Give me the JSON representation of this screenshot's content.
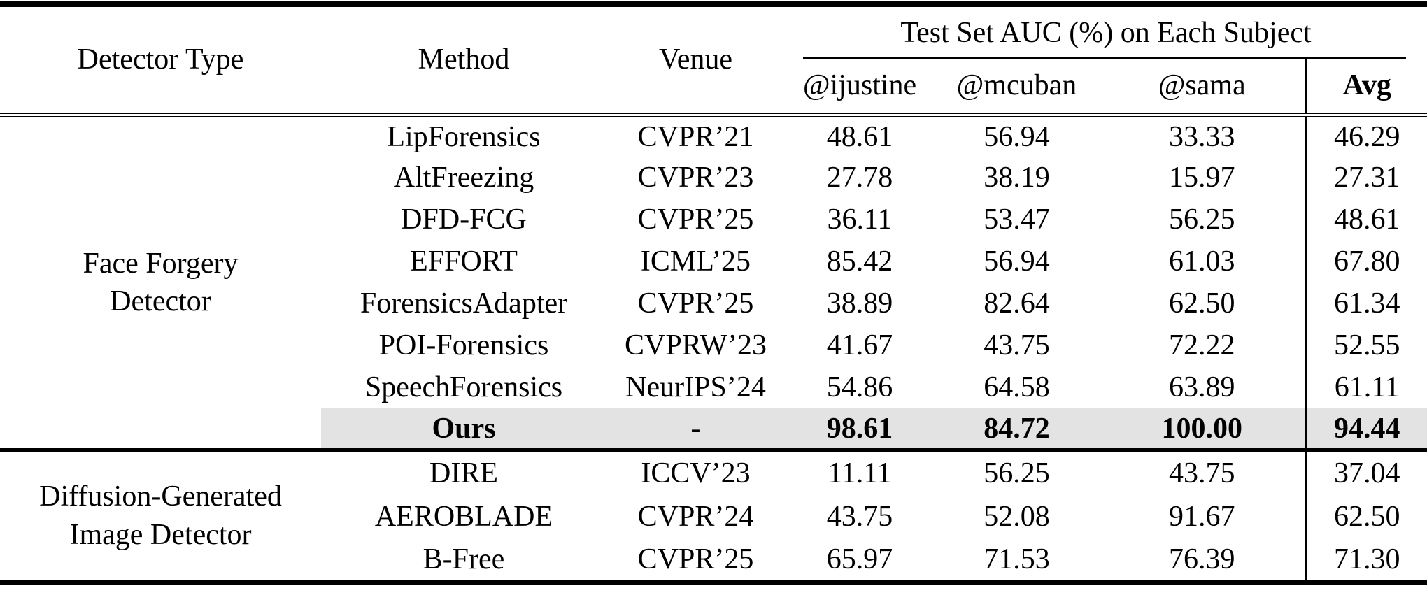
{
  "table": {
    "columns": {
      "detector_type": "Detector Type",
      "method": "Method",
      "venue": "Venue"
    },
    "group_header": "Test Set AUC (%) on Each Subject",
    "subject_columns": [
      "@ijustine",
      "@mcuban",
      "@sama",
      "Avg"
    ],
    "highlight_color": "#e3e3e3",
    "sections": [
      {
        "detector_type": "Face Forgery Detector",
        "rows": [
          {
            "method": "LipForensics",
            "venue": "CVPR’21",
            "values": [
              "48.61",
              "56.94",
              "33.33",
              "46.29"
            ]
          },
          {
            "method": "AltFreezing",
            "venue": "CVPR’23",
            "values": [
              "27.78",
              "38.19",
              "15.97",
              "27.31"
            ]
          },
          {
            "method": "DFD-FCG",
            "venue": "CVPR’25",
            "values": [
              "36.11",
              "53.47",
              "56.25",
              "48.61"
            ]
          },
          {
            "method": "EFFORT",
            "venue": "ICML’25",
            "values": [
              "85.42",
              "56.94",
              "61.03",
              "67.80"
            ]
          },
          {
            "method": "ForensicsAdapter",
            "venue": "CVPR’25",
            "values": [
              "38.89",
              "82.64",
              "62.50",
              "61.34"
            ]
          },
          {
            "method": "POI-Forensics",
            "venue": "CVPRW’23",
            "values": [
              "41.67",
              "43.75",
              "72.22",
              "52.55"
            ]
          },
          {
            "method": "SpeechForensics",
            "venue": "NeurIPS’24",
            "values": [
              "54.86",
              "64.58",
              "63.89",
              "61.11"
            ]
          },
          {
            "method": "Ours",
            "venue": "-",
            "values": [
              "98.61",
              "84.72",
              "100.00",
              "94.44"
            ],
            "highlight": true,
            "bold": true
          }
        ]
      },
      {
        "detector_type": "Diffusion-Generated Image Detector",
        "rows": [
          {
            "method": "DIRE",
            "venue": "ICCV’23",
            "values": [
              "11.11",
              "56.25",
              "43.75",
              "37.04"
            ]
          },
          {
            "method": "AEROBLADE",
            "venue": "CVPR’24",
            "values": [
              "43.75",
              "52.08",
              "91.67",
              "62.50"
            ]
          },
          {
            "method": "B-Free",
            "venue": "CVPR’25",
            "values": [
              "65.97",
              "71.53",
              "76.39",
              "71.30"
            ]
          }
        ]
      }
    ]
  }
}
